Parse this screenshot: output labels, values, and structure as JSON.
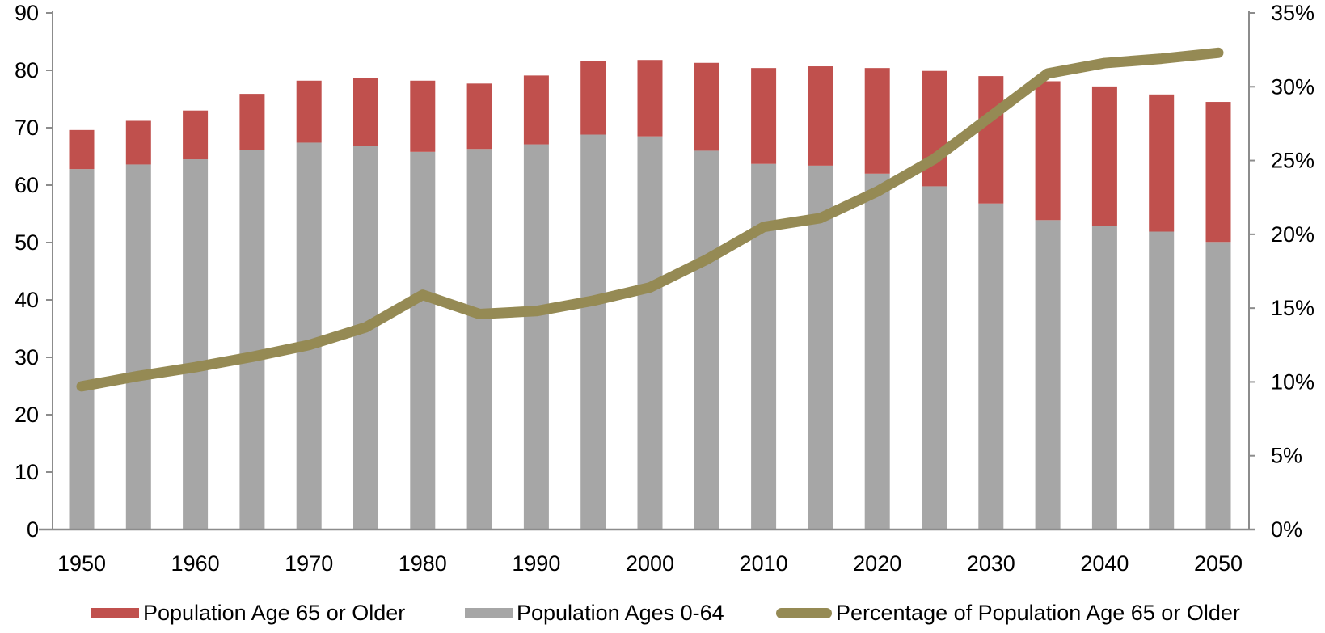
{
  "chart_data": {
    "type": "bar",
    "subtype": "stacked-column-with-line",
    "title": "",
    "background": "#FFFFFF",
    "grid": false,
    "axis_line_color": "#8C8C8C",
    "text_color": "#000000",
    "x": [
      1950,
      1955,
      1960,
      1965,
      1970,
      1975,
      1980,
      1985,
      1990,
      1995,
      2000,
      2005,
      2010,
      2015,
      2020,
      2025,
      2030,
      2035,
      2040,
      2045,
      2050
    ],
    "series": [
      {
        "name": "Population Age 65 or Older",
        "type": "bar",
        "stack_position": "top",
        "axis": "left",
        "color": "#C0504D",
        "values": [
          6.8,
          7.6,
          8.5,
          9.8,
          10.8,
          11.8,
          12.4,
          11.4,
          12.0,
          12.8,
          13.3,
          15.3,
          16.7,
          17.3,
          18.4,
          20.1,
          22.2,
          24.2,
          24.3,
          23.9,
          24.4
        ]
      },
      {
        "name": "Population Ages 0-64",
        "type": "bar",
        "stack_position": "bottom",
        "axis": "left",
        "color": "#A6A6A6",
        "values": [
          62.8,
          63.6,
          64.5,
          66.1,
          67.4,
          66.8,
          65.8,
          66.3,
          67.1,
          68.8,
          68.5,
          66.0,
          63.7,
          63.4,
          62.0,
          59.8,
          56.8,
          53.9,
          52.9,
          51.9,
          50.1
        ]
      },
      {
        "name": "Percentage of Population Age 65 or Older",
        "type": "line",
        "axis": "right",
        "color": "#958A54",
        "values": [
          9.7,
          10.4,
          11.0,
          11.7,
          12.5,
          13.7,
          15.9,
          14.6,
          14.8,
          15.5,
          16.4,
          18.3,
          20.5,
          21.1,
          22.9,
          25.1,
          28.0,
          30.9,
          31.6,
          31.9,
          32.3
        ]
      }
    ],
    "left_axis": {
      "min": 0,
      "max": 90,
      "step": 10,
      "labels": [
        "0",
        "10",
        "20",
        "30",
        "40",
        "50",
        "60",
        "70",
        "80",
        "90"
      ]
    },
    "right_axis": {
      "min": 0,
      "max": 35,
      "step": 5,
      "labels": [
        "0%",
        "5%",
        "10%",
        "15%",
        "20%",
        "25%",
        "30%",
        "35%"
      ]
    },
    "x_axis": {
      "tick_labels": [
        "1950",
        "1960",
        "1970",
        "1980",
        "1990",
        "2000",
        "2010",
        "2020",
        "2030",
        "2040",
        "2050"
      ],
      "label_every_n_bars": 2
    },
    "legend": {
      "position": "bottom",
      "items": [
        {
          "label": "Population Age 65 or Older",
          "swatch": "rect",
          "color": "#C0504D"
        },
        {
          "label": "Population Ages 0-64",
          "swatch": "rect",
          "color": "#A6A6A6"
        },
        {
          "label": "Percentage of Population Age 65 or Older",
          "swatch": "line",
          "color": "#958A54"
        }
      ]
    }
  }
}
